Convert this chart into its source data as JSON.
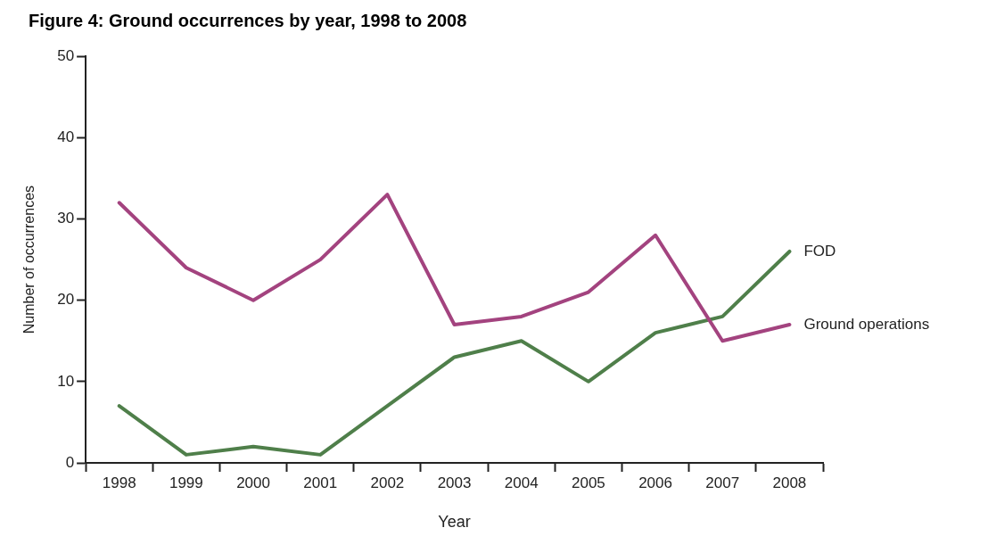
{
  "chart_data": {
    "type": "line",
    "title": "Figure 4:  Ground occurrences by year, 1998 to 2008",
    "xlabel": "Year",
    "ylabel": "Number of occurrences",
    "categories": [
      "1998",
      "1999",
      "2000",
      "2001",
      "2002",
      "2003",
      "2004",
      "2005",
      "2006",
      "2007",
      "2008"
    ],
    "ylim": [
      0,
      50
    ],
    "yticks": [
      0,
      10,
      20,
      30,
      40,
      50
    ],
    "marker": "none",
    "line_style": "solid",
    "series": [
      {
        "name": "Ground operations",
        "color": "#a3437f",
        "values": [
          32,
          24,
          20,
          25,
          33,
          17,
          18,
          21,
          28,
          15,
          17
        ]
      },
      {
        "name": "FOD",
        "color": "#4f7f4a",
        "values": [
          7,
          1,
          2,
          1,
          7,
          13,
          15,
          10,
          16,
          18,
          26
        ]
      }
    ]
  }
}
